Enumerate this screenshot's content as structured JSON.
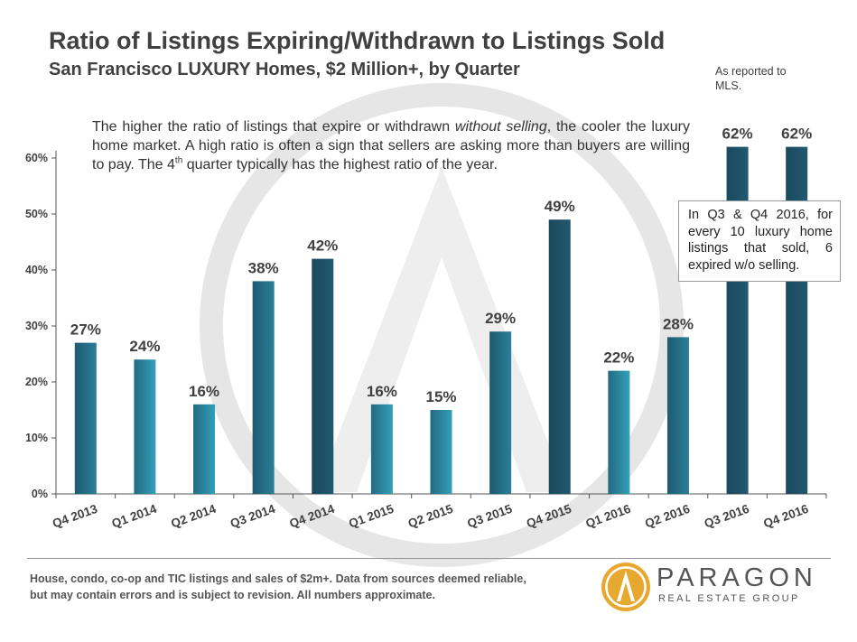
{
  "header": {
    "title": "Ratio of Listings Expiring/Withdrawn to Listings Sold",
    "subtitle": "San Francisco LUXURY Homes, $2 Million+, by Quarter",
    "mls_note": "As reported to MLS."
  },
  "explanation": {
    "part1": "The higher the ratio of listings that expire or withdrawn ",
    "emphasis": "without selling",
    "part2": ", the cooler the luxury home market. A high ratio is often a sign that sellers are asking more than buyers are willing to pay. The 4",
    "superscript": "th",
    "part3": " quarter typically has the highest  ratio of the year."
  },
  "callout": "In Q3 & Q4 2016, for every 10 luxury home listings that sold, 6 expired w/o selling.",
  "footer": {
    "note": "House, condo, co-op and TIC listings and sales of $2m+. Data from sources deemed reliable, but may contain errors and is subject to revision. All numbers approximate."
  },
  "logo": {
    "name": "PARAGON",
    "tagline": "REAL ESTATE GROUP"
  },
  "colors": {
    "bar_dark": "#1d4e64",
    "bar_light": "#2f93ab",
    "bar_mid": "#246e86",
    "text": "#404040",
    "logo_gold": "#e7a830"
  },
  "chart_data": {
    "type": "bar",
    "categories": [
      "Q4 2013",
      "Q1 2014",
      "Q2 2014",
      "Q3 2014",
      "Q4 2014",
      "Q1 2015",
      "Q2 2015",
      "Q3 2015",
      "Q4 2015",
      "Q1 2016",
      "Q2 2016",
      "Q3 2016",
      "Q4 2016"
    ],
    "values": [
      27,
      24,
      16,
      38,
      42,
      16,
      15,
      29,
      49,
      22,
      28,
      62,
      62
    ],
    "data_labels": [
      "27%",
      "24%",
      "16%",
      "38%",
      "42%",
      "16%",
      "15%",
      "29%",
      "49%",
      "22%",
      "28%",
      "62%",
      "62%"
    ],
    "ylim": [
      0,
      65
    ],
    "yticks": [
      0,
      10,
      20,
      30,
      40,
      50,
      60
    ],
    "ytick_labels": [
      "0%",
      "10%",
      "20%",
      "30%",
      "40%",
      "50%",
      "60%"
    ],
    "grid": false,
    "legend": "none",
    "title": "",
    "xlabel": "",
    "ylabel": ""
  }
}
